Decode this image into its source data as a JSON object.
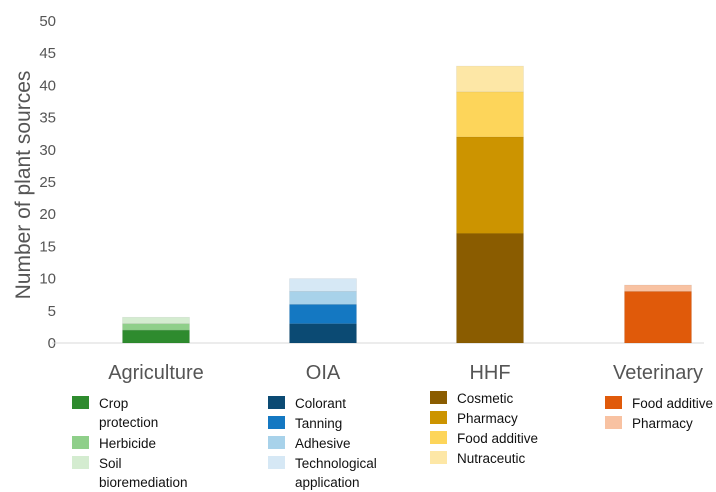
{
  "chart_data": {
    "type": "bar",
    "stacked": true,
    "ylabel": "Number of plant sources",
    "ylim": [
      0,
      50
    ],
    "yticks": [
      0,
      5,
      10,
      15,
      20,
      25,
      30,
      35,
      40,
      45,
      50
    ],
    "grid": false,
    "categories": [
      "Agriculture",
      "OIA",
      "HHF",
      "Veterinary"
    ],
    "groups": [
      {
        "category": "Agriculture",
        "segments": [
          {
            "name": "Crop protection",
            "value": 2,
            "color": "#2e8b2e"
          },
          {
            "name": "Herbicide",
            "value": 1,
            "color": "#8fcf8a"
          },
          {
            "name": "Soil bioremediation",
            "value": 1,
            "color": "#d4ecd0"
          }
        ]
      },
      {
        "category": "OIA",
        "segments": [
          {
            "name": "Colorant",
            "value": 3,
            "color": "#0b4a73"
          },
          {
            "name": "Tanning",
            "value": 3,
            "color": "#1478c2"
          },
          {
            "name": "Adhesive",
            "value": 2,
            "color": "#a8d2ea"
          },
          {
            "name": "Technological application",
            "value": 2,
            "color": "#d6e8f5"
          }
        ]
      },
      {
        "category": "HHF",
        "segments": [
          {
            "name": "Cosmetic",
            "value": 17,
            "color": "#8a5c00"
          },
          {
            "name": "Pharmacy",
            "value": 15,
            "color": "#cc9400"
          },
          {
            "name": "Food additive",
            "value": 7,
            "color": "#fdd55a"
          },
          {
            "name": "Nutraceutic",
            "value": 4,
            "color": "#fde7a6"
          }
        ]
      },
      {
        "category": "Veterinary",
        "segments": [
          {
            "name": "Food additive",
            "value": 8,
            "color": "#e05a0a"
          },
          {
            "name": "Pharmacy",
            "value": 1,
            "color": "#f8c2a2"
          }
        ]
      }
    ]
  }
}
